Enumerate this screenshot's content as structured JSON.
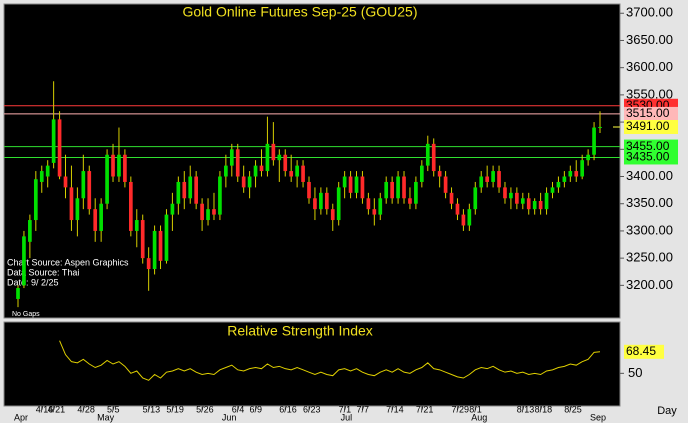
{
  "chart_data": {
    "type": "candlestick",
    "title": "Gold Online Futures Sep-25 (GOU25)",
    "categories": [
      null,
      null,
      null,
      null,
      "4/16",
      null,
      "4/21",
      null,
      null,
      null,
      null,
      "4/28",
      null,
      null,
      null,
      null,
      "5/5",
      null,
      null,
      null,
      null,
      null,
      "5/13",
      null,
      null,
      null,
      "5/19",
      null,
      null,
      null,
      null,
      "5/26",
      null,
      null,
      null,
      null,
      null,
      "6/4",
      null,
      null,
      "6/9",
      null,
      null,
      null,
      null,
      "6/16",
      null,
      null,
      null,
      "6/23",
      null,
      null,
      null,
      null,
      null,
      "7/1",
      null,
      null,
      "7/7",
      null,
      null,
      null,
      null,
      "7/14",
      null,
      null,
      null,
      null,
      "7/21",
      null,
      null,
      null,
      null,
      null,
      "7/29",
      null,
      null,
      "8/1",
      null,
      null,
      null,
      null,
      null,
      null,
      null,
      "8/13",
      null,
      null,
      "8/18",
      null,
      null,
      null,
      null,
      "8/25",
      null,
      null,
      null,
      null,
      null
    ],
    "months": [
      "Apr",
      null,
      null,
      null,
      null,
      null,
      null,
      null,
      null,
      null,
      null,
      null,
      null,
      null,
      "May",
      null,
      null,
      null,
      null,
      null,
      null,
      null,
      null,
      null,
      null,
      null,
      null,
      null,
      null,
      null,
      null,
      null,
      null,
      null,
      null,
      "Jun",
      null,
      null,
      null,
      null,
      null,
      null,
      null,
      null,
      null,
      null,
      null,
      null,
      null,
      null,
      null,
      null,
      null,
      null,
      null,
      "Jul",
      null,
      null,
      null,
      null,
      null,
      null,
      null,
      null,
      null,
      null,
      null,
      null,
      null,
      null,
      null,
      null,
      null,
      null,
      null,
      null,
      null,
      "Aug",
      null,
      null,
      null,
      null,
      null,
      null,
      null,
      null,
      null,
      null,
      null,
      null,
      null,
      null,
      null,
      null,
      null,
      null,
      null,
      "Sep"
    ],
    "x_unit": "Day",
    "open": [
      3175,
      3200,
      3280,
      3320,
      3390,
      3400,
      3425,
      3505,
      3400,
      3380,
      3320,
      3360,
      3410,
      3340,
      3300,
      3350,
      3440,
      3400,
      3440,
      3390,
      3300,
      3320,
      3250,
      3230,
      3300,
      3245,
      3330,
      3350,
      3390,
      3360,
      3400,
      3350,
      3320,
      3340,
      3330,
      3400,
      3420,
      3450,
      3400,
      3380,
      3400,
      3420,
      3410,
      3460,
      3430,
      3440,
      3410,
      3400,
      3420,
      3390,
      3360,
      3340,
      3370,
      3340,
      3320,
      3380,
      3400,
      3370,
      3400,
      3360,
      3340,
      3330,
      3360,
      3390,
      3360,
      3400,
      3360,
      3350,
      3390,
      3420,
      3460,
      3410,
      3400,
      3370,
      3350,
      3330,
      3310,
      3340,
      3380,
      3400,
      3390,
      3410,
      3380,
      3360,
      3370,
      3350,
      3360,
      3340,
      3355,
      3340,
      3370,
      3380,
      3390,
      3400,
      3410,
      3400,
      3430,
      3440,
      3490
    ],
    "high": [
      3200,
      3300,
      3330,
      3410,
      3420,
      3430,
      3575,
      3520,
      3440,
      3420,
      3380,
      3440,
      3420,
      3360,
      3360,
      3450,
      3460,
      3490,
      3450,
      3400,
      3340,
      3330,
      3270,
      3310,
      3310,
      3340,
      3370,
      3400,
      3410,
      3420,
      3410,
      3360,
      3360,
      3370,
      3410,
      3440,
      3460,
      3460,
      3420,
      3410,
      3430,
      3450,
      3510,
      3500,
      3450,
      3450,
      3440,
      3430,
      3430,
      3400,
      3380,
      3380,
      3380,
      3350,
      3390,
      3410,
      3410,
      3410,
      3410,
      3370,
      3360,
      3370,
      3400,
      3400,
      3410,
      3410,
      3380,
      3400,
      3430,
      3475,
      3470,
      3420,
      3410,
      3380,
      3360,
      3340,
      3350,
      3390,
      3410,
      3420,
      3420,
      3420,
      3390,
      3380,
      3380,
      3370,
      3370,
      3360,
      3370,
      3380,
      3390,
      3400,
      3410,
      3420,
      3430,
      3440,
      3450,
      3500,
      3520
    ],
    "low": [
      3160,
      3195,
      3250,
      3300,
      3370,
      3380,
      3415,
      3395,
      3360,
      3300,
      3290,
      3340,
      3330,
      3280,
      3280,
      3340,
      3390,
      3390,
      3380,
      3290,
      3270,
      3240,
      3190,
      3220,
      3230,
      3240,
      3300,
      3330,
      3340,
      3350,
      3340,
      3300,
      3310,
      3320,
      3320,
      3380,
      3400,
      3390,
      3370,
      3360,
      3380,
      3400,
      3400,
      3420,
      3390,
      3400,
      3390,
      3380,
      3380,
      3350,
      3320,
      3330,
      3330,
      3300,
      3310,
      3360,
      3360,
      3360,
      3350,
      3330,
      3310,
      3320,
      3350,
      3350,
      3350,
      3350,
      3340,
      3340,
      3380,
      3410,
      3400,
      3380,
      3360,
      3340,
      3320,
      3300,
      3300,
      3330,
      3370,
      3380,
      3380,
      3370,
      3350,
      3340,
      3340,
      3340,
      3330,
      3330,
      3330,
      3330,
      3360,
      3370,
      3380,
      3390,
      3390,
      3395,
      3420,
      3430,
      3480
    ],
    "close": [
      3195,
      3290,
      3320,
      3395,
      3410,
      3420,
      3505,
      3400,
      3380,
      3320,
      3360,
      3410,
      3340,
      3300,
      3350,
      3440,
      3400,
      3440,
      3390,
      3300,
      3320,
      3250,
      3230,
      3300,
      3245,
      3330,
      3350,
      3390,
      3360,
      3400,
      3350,
      3320,
      3340,
      3330,
      3400,
      3420,
      3450,
      3400,
      3380,
      3400,
      3420,
      3410,
      3460,
      3430,
      3440,
      3410,
      3400,
      3420,
      3390,
      3360,
      3340,
      3370,
      3340,
      3320,
      3380,
      3400,
      3370,
      3400,
      3360,
      3340,
      3330,
      3360,
      3390,
      3360,
      3400,
      3360,
      3350,
      3390,
      3420,
      3460,
      3410,
      3400,
      3370,
      3350,
      3330,
      3310,
      3340,
      3380,
      3400,
      3390,
      3410,
      3380,
      3360,
      3370,
      3350,
      3360,
      3340,
      3355,
      3340,
      3370,
      3380,
      3390,
      3400,
      3410,
      3400,
      3430,
      3440,
      3490,
      3491
    ],
    "up_color": "#00e000",
    "down_color": "#ff2a2a",
    "wick_color": "#d8d000",
    "ylim": [
      3140,
      3717
    ],
    "yticks": [
      {
        "value": 3200,
        "label": "3200.00"
      },
      {
        "value": 3250,
        "label": "3250.00"
      },
      {
        "value": 3300,
        "label": "3300.00"
      },
      {
        "value": 3350,
        "label": "3350.00"
      },
      {
        "value": 3400,
        "label": "3400.00"
      },
      {
        "value": 3450,
        "label": "3450.00"
      },
      {
        "value": 3500,
        "label": "3500.00"
      },
      {
        "value": 3550,
        "label": "3550.00"
      },
      {
        "value": 3600,
        "label": "3600.00"
      },
      {
        "value": 3650,
        "label": "3650.00"
      },
      {
        "value": 3700,
        "label": "3700.00"
      }
    ],
    "hlines": [
      {
        "value": 3530,
        "label": "3530.00",
        "color": "#ff3a3a",
        "tag_color": "#ff3030"
      },
      {
        "value": 3515,
        "label": "3515.00",
        "color": "#ffb0b0",
        "tag_color": "#ffb8b8"
      },
      {
        "value": 3455,
        "label": "3455.00",
        "color": "#30e030",
        "tag_color": "#30ff30"
      },
      {
        "value": 3435,
        "label": "3435.00",
        "color": "#30e030",
        "tag_color": "#30ff30"
      }
    ],
    "last_price": {
      "value": 3491,
      "label": "3491.00",
      "tag_color": "#ffff40"
    },
    "annotations": [
      "Chart Source: Aspen Graphics",
      "Data Source: Thai",
      "Date:   9/ 2/25",
      "No Gaps"
    ],
    "indicator": {
      "type": "line",
      "title": "Relative Strength Index",
      "color": "#e0d000",
      "values": [
        null,
        null,
        null,
        null,
        null,
        null,
        null,
        78,
        66,
        60,
        59,
        62,
        58,
        55,
        57,
        61,
        58,
        60,
        56,
        50,
        52,
        46,
        44,
        49,
        46,
        51,
        52,
        54,
        52,
        54,
        51,
        49,
        50,
        49,
        53,
        55,
        57,
        53,
        52,
        54,
        55,
        54,
        58,
        55,
        56,
        54,
        53,
        55,
        53,
        51,
        49,
        51,
        49,
        48,
        53,
        54,
        52,
        54,
        51,
        49,
        48,
        51,
        53,
        51,
        54,
        51,
        50,
        53,
        55,
        59,
        54,
        53,
        51,
        49,
        47,
        46,
        49,
        53,
        55,
        54,
        56,
        53,
        51,
        52,
        50,
        51,
        49,
        50,
        49,
        52,
        53,
        55,
        56,
        58,
        57,
        60,
        62,
        68,
        68.45
      ],
      "ylim": [
        22,
        94
      ],
      "yticks": [
        50
      ],
      "tag_color": "#ffff40"
    }
  }
}
